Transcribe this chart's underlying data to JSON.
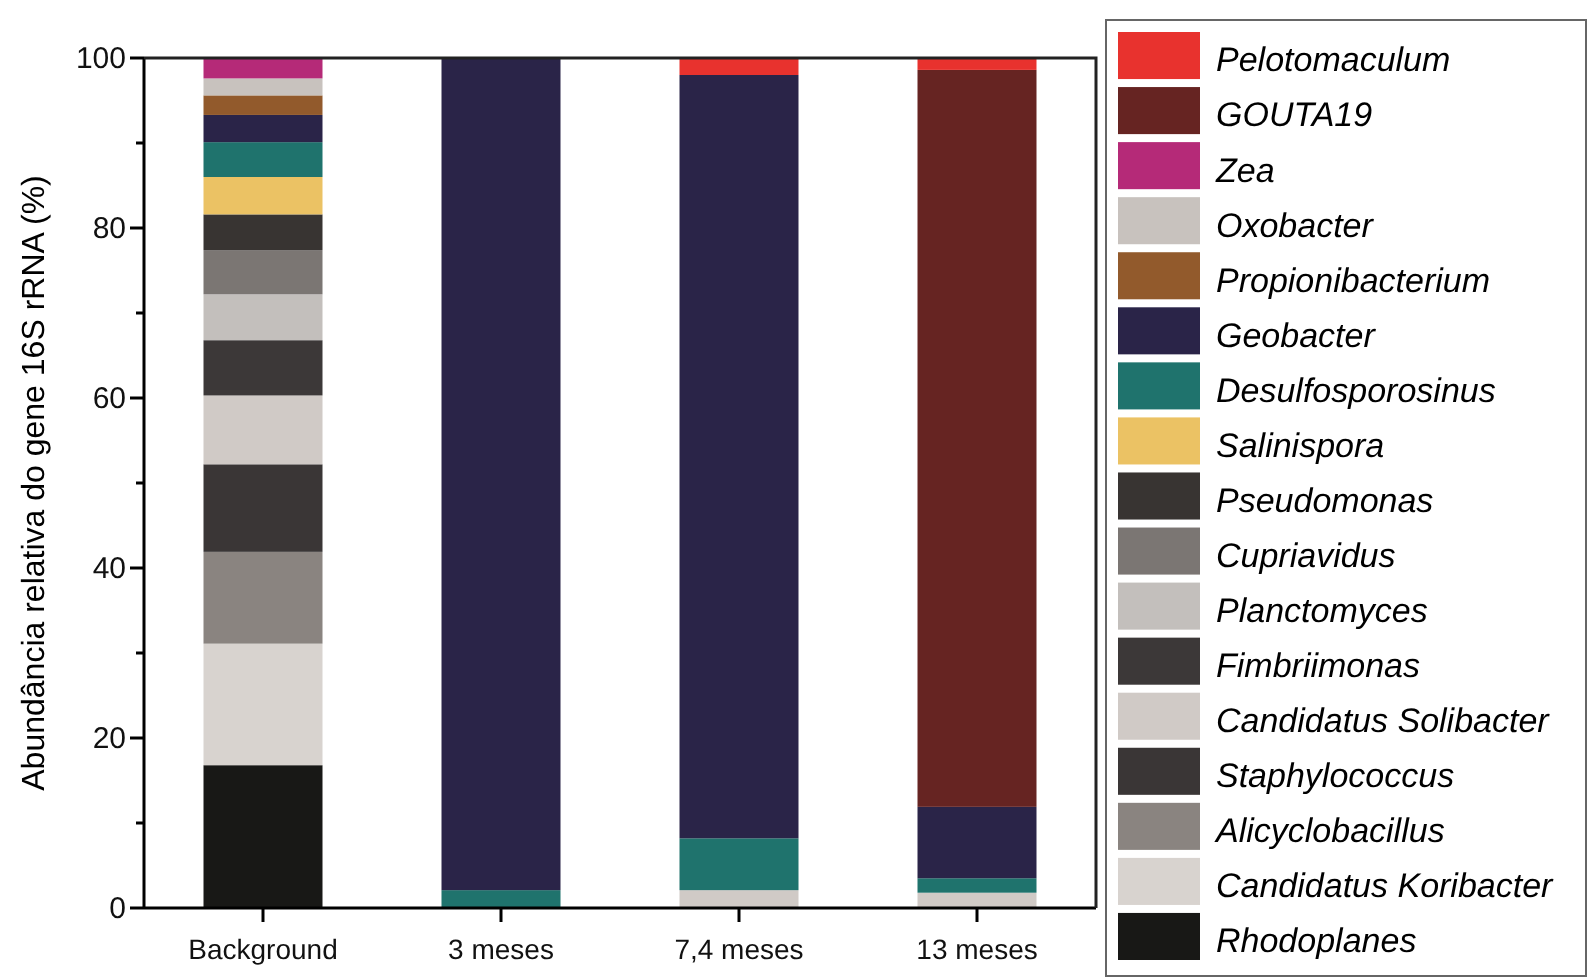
{
  "chart_data": {
    "type": "bar",
    "stacked": true,
    "ylabel": "Abundância relativa do gene 16S rRNA (%)",
    "categories": [
      "Background",
      "3 meses",
      "7,4 meses",
      "13 meses"
    ],
    "ylim": [
      0,
      100
    ],
    "yticks": [
      0,
      {
        "value": 10,
        "label": null
      },
      20,
      {
        "value": 30,
        "label": null
      },
      40,
      {
        "value": 50,
        "label": null
      },
      60,
      {
        "value": 70,
        "label": null
      },
      80,
      {
        "value": 90,
        "label": null
      },
      100
    ],
    "legend": "right",
    "grid": false,
    "series": [
      {
        "name": "Rhodoplanes",
        "color": "#181816",
        "values": [
          16.8,
          null,
          null,
          null
        ]
      },
      {
        "name": "Candidatus Koribacter",
        "color": "#d8d3cf",
        "values": [
          14.3,
          null,
          null,
          null
        ]
      },
      {
        "name": "Alicyclobacillus",
        "color": "#8a8480",
        "values": [
          10.8,
          null,
          null,
          null
        ]
      },
      {
        "name": "Staphylococcus",
        "color": "#3a3636",
        "values": [
          10.3,
          null,
          null,
          null
        ]
      },
      {
        "name": "Candidatus Solibacter",
        "color": "#d0cac6",
        "values": [
          8.1,
          null,
          2.1,
          1.8
        ]
      },
      {
        "name": "Fimbriimonas",
        "color": "#3c3838",
        "values": [
          6.5,
          null,
          null,
          null
        ]
      },
      {
        "name": "Planctomyces",
        "color": "#c3bfbc",
        "values": [
          5.4,
          null,
          null,
          null
        ]
      },
      {
        "name": "Cupriavidus",
        "color": "#7b7673",
        "values": [
          5.2,
          null,
          null,
          null
        ]
      },
      {
        "name": "Pseudomonas",
        "color": "#383432",
        "values": [
          4.2,
          null,
          null,
          null
        ]
      },
      {
        "name": "Salinispora",
        "color": "#ebc264",
        "values": [
          4.4,
          null,
          null,
          null
        ]
      },
      {
        "name": "Desulfosporosinus",
        "color": "#1f736d",
        "values": [
          4.1,
          2.1,
          6.1,
          1.7
        ]
      },
      {
        "name": "Geobacter",
        "color": "#2a2448",
        "values": [
          3.2,
          97.9,
          89.8,
          8.4
        ]
      },
      {
        "name": "Propionibacterium",
        "color": "#925a2c",
        "values": [
          2.3,
          null,
          null,
          null
        ]
      },
      {
        "name": "Oxobacter",
        "color": "#c8c2be",
        "values": [
          2.0,
          null,
          null,
          null
        ]
      },
      {
        "name": "Zea",
        "color": "#b52a78",
        "values": [
          2.4,
          null,
          null,
          null
        ]
      },
      {
        "name": "GOUTA19",
        "color": "#662422",
        "values": [
          null,
          null,
          null,
          86.7
        ]
      },
      {
        "name": "Pelotomaculum",
        "color": "#e8322e",
        "values": [
          null,
          null,
          2.0,
          1.4
        ]
      }
    ]
  }
}
